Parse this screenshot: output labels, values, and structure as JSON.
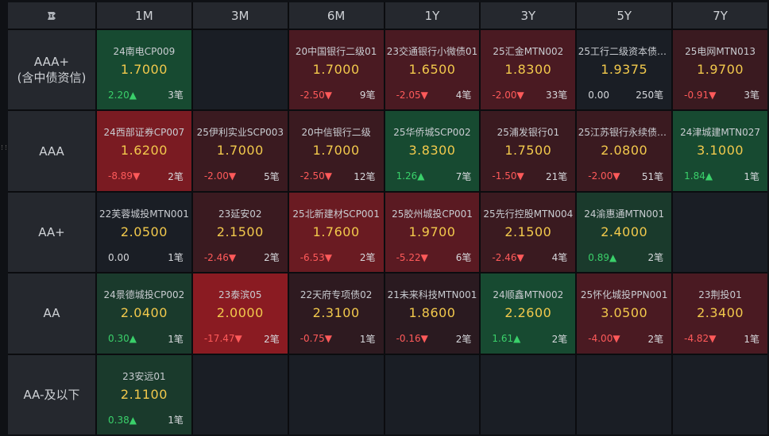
{
  "corner_icon": "brand-logo-icon",
  "columns": [
    "1M",
    "3M",
    "6M",
    "1Y",
    "3Y",
    "5Y",
    "7Y"
  ],
  "colors": {
    "dark_green": "#174a31",
    "mid_green": "#1a3a2c",
    "dark_red": "#4a1a22",
    "mid_red": "#5a1e26",
    "bright_red": "#8a1b22",
    "neutral": "#1a1e25",
    "empty": "#1a1e25"
  },
  "rows": [
    {
      "label_line1": "AAA+",
      "label_line2": "(含中债资信)",
      "cells": [
        {
          "name": "24南电CP009",
          "yield": "1.7000",
          "change": "2.20",
          "dir": "up",
          "count": "3笔",
          "bg": "#174a31"
        },
        null,
        {
          "name": "20中国银行二级01",
          "yield": "1.7000",
          "change": "-2.50",
          "dir": "down",
          "count": "9笔",
          "bg": "#4a1a22"
        },
        {
          "name": "23交通银行小微债01",
          "yield": "1.6500",
          "change": "-2.05",
          "dir": "down",
          "count": "4笔",
          "bg": "#4a1a22"
        },
        {
          "name": "25汇金MTN002",
          "yield": "1.8300",
          "change": "-2.00",
          "dir": "down",
          "count": "33笔",
          "bg": "#4a1a22"
        },
        {
          "name": "25工行二级资本债0...",
          "yield": "1.9375",
          "change": "0.00",
          "dir": "flat",
          "count": "250笔",
          "bg": "#1a1e25"
        },
        {
          "name": "25电网MTN013",
          "yield": "1.9700",
          "change": "-0.91",
          "dir": "down",
          "count": "3笔",
          "bg": "#3a1a20"
        }
      ]
    },
    {
      "label_line1": "AAA",
      "label_line2": "",
      "cells": [
        {
          "name": "24西部证券CP007",
          "yield": "1.6200",
          "change": "-8.89",
          "dir": "down",
          "count": "2笔",
          "bg": "#7a1b22"
        },
        {
          "name": "25伊利实业SCP003",
          "yield": "1.7000",
          "change": "-2.00",
          "dir": "down",
          "count": "5笔",
          "bg": "#3a1a20"
        },
        {
          "name": "20中信银行二级",
          "yield": "1.7000",
          "change": "-2.50",
          "dir": "down",
          "count": "12笔",
          "bg": "#3a1a20"
        },
        {
          "name": "25华侨城SCP002",
          "yield": "3.8300",
          "change": "1.26",
          "dir": "up",
          "count": "7笔",
          "bg": "#174a31"
        },
        {
          "name": "25浦发银行01",
          "yield": "1.7500",
          "change": "-1.50",
          "dir": "down",
          "count": "21笔",
          "bg": "#3a1a20"
        },
        {
          "name": "25江苏银行永续债0...",
          "yield": "2.0800",
          "change": "-2.00",
          "dir": "down",
          "count": "51笔",
          "bg": "#3a1a20"
        },
        {
          "name": "24津城建MTN027",
          "yield": "3.1000",
          "change": "1.84",
          "dir": "up",
          "count": "1笔",
          "bg": "#174a31"
        }
      ]
    },
    {
      "label_line1": "AA+",
      "label_line2": "",
      "cells": [
        {
          "name": "22芙蓉城投MTN001",
          "yield": "2.0500",
          "change": "0.00",
          "dir": "flat",
          "count": "1笔",
          "bg": "#1a1e25"
        },
        {
          "name": "23延安02",
          "yield": "2.1500",
          "change": "-2.46",
          "dir": "down",
          "count": "2笔",
          "bg": "#3a1a20"
        },
        {
          "name": "25北新建材SCP001",
          "yield": "1.7600",
          "change": "-6.53",
          "dir": "down",
          "count": "2笔",
          "bg": "#6a1b22"
        },
        {
          "name": "25胶州城投CP001",
          "yield": "1.9700",
          "change": "-5.22",
          "dir": "down",
          "count": "6笔",
          "bg": "#5a1a22"
        },
        {
          "name": "25先行控股MTN004",
          "yield": "2.1500",
          "change": "-2.46",
          "dir": "down",
          "count": "4笔",
          "bg": "#3a1a20"
        },
        {
          "name": "24渝惠通MTN001",
          "yield": "2.4000",
          "change": "0.89",
          "dir": "up",
          "count": "2笔",
          "bg": "#1a3a2c"
        },
        null
      ]
    },
    {
      "label_line1": "AA",
      "label_line2": "",
      "cells": [
        {
          "name": "24景德城投CP002",
          "yield": "2.0400",
          "change": "0.30",
          "dir": "up",
          "count": "1笔",
          "bg": "#1a3a2c"
        },
        {
          "name": "23泰滨05",
          "yield": "2.0000",
          "change": "-17.47",
          "dir": "down",
          "count": "2笔",
          "bg": "#8a1b22"
        },
        {
          "name": "22天府专项债02",
          "yield": "2.3100",
          "change": "-0.75",
          "dir": "down",
          "count": "1笔",
          "bg": "#2e1a20"
        },
        {
          "name": "21未来科技MTN001",
          "yield": "1.8600",
          "change": "-0.16",
          "dir": "down",
          "count": "2笔",
          "bg": "#2a1a20"
        },
        {
          "name": "24顺鑫MTN002",
          "yield": "2.2600",
          "change": "1.61",
          "dir": "up",
          "count": "2笔",
          "bg": "#174a31"
        },
        {
          "name": "25怀化城投PPN001",
          "yield": "3.0500",
          "change": "-4.00",
          "dir": "down",
          "count": "2笔",
          "bg": "#4a1a22"
        },
        {
          "name": "23荆投01",
          "yield": "2.3400",
          "change": "-4.82",
          "dir": "down",
          "count": "1笔",
          "bg": "#4a1a22"
        }
      ]
    },
    {
      "label_line1": "AA-及以下",
      "label_line2": "",
      "cells": [
        {
          "name": "23安远01",
          "yield": "2.1100",
          "change": "0.38",
          "dir": "up",
          "count": "1笔",
          "bg": "#1a3a2c"
        },
        null,
        null,
        null,
        null,
        null,
        null
      ]
    }
  ]
}
